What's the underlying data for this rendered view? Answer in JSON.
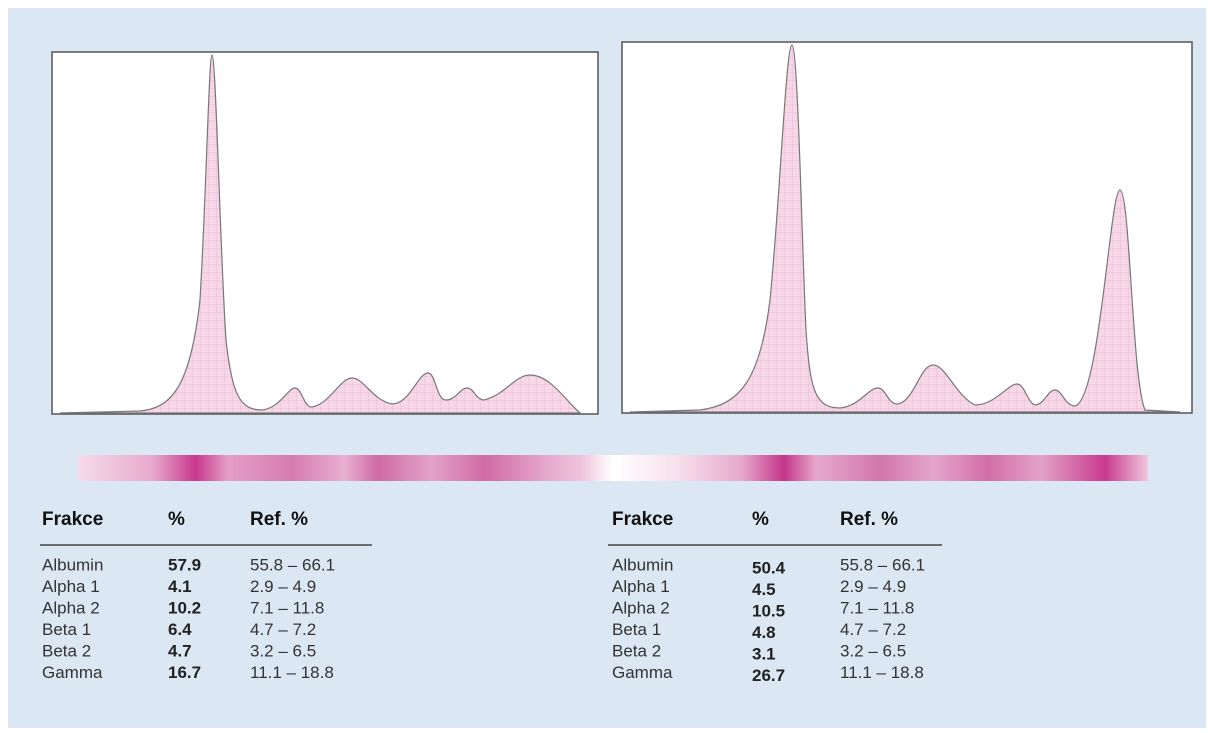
{
  "panels": [
    {
      "table": {
        "header": [
          "Frakce",
          "%",
          "Ref. %"
        ],
        "rows": [
          [
            "Albumin",
            57.9,
            "55.8 – 66.1"
          ],
          [
            "Alpha 1",
            4.1,
            "2.9 – 4.9"
          ],
          [
            "Alpha 2",
            10.2,
            "7.1 – 11.8"
          ],
          [
            "Beta 1",
            6.4,
            "4.7 – 7.2"
          ],
          [
            "Beta 2",
            4.7,
            "3.2 – 6.5"
          ],
          [
            "Gamma",
            16.7,
            "11.1 – 18.8"
          ]
        ]
      }
    },
    {
      "table": {
        "header": [
          "Frakce",
          "%",
          "Ref. %"
        ],
        "rows": [
          [
            "Albumin",
            50.4,
            "55.8 – 66.1"
          ],
          [
            "Alpha 1",
            4.5,
            "2.9 – 4.9"
          ],
          [
            "Alpha 2",
            10.5,
            "7.1 – 11.8"
          ],
          [
            "Beta 1",
            4.8,
            "4.7 – 7.2"
          ],
          [
            "Beta 2",
            3.1,
            "3.2 – 6.5"
          ],
          [
            "Gamma",
            26.7,
            "11.1 – 18.8"
          ]
        ]
      }
    }
  ]
}
